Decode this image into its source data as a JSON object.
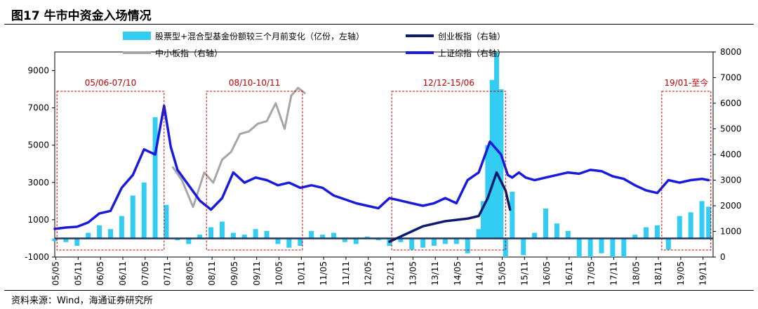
{
  "title": "图17 牛市中资金入场情况",
  "source": "资料来源：Wind，海通证券研究所",
  "chart_data": {
    "type": "bar",
    "x_ticks": [
      "05/05",
      "05/11",
      "06/05",
      "06/11",
      "07/05",
      "07/11",
      "08/05",
      "08/11",
      "09/05",
      "09/11",
      "10/05",
      "10/11",
      "11/05",
      "11/11",
      "12/05",
      "12/11",
      "13/05",
      "13/11",
      "14/05",
      "14/11",
      "15/05",
      "15/11",
      "16/05",
      "16/11",
      "17/05",
      "17/11",
      "18/05",
      "18/11",
      "19/05",
      "19/11"
    ],
    "left_axis": {
      "ticks": [
        "-1000",
        "1000",
        "3000",
        "5000",
        "7000",
        "9000"
      ],
      "range": [
        -1000,
        10000
      ]
    },
    "right_axis": {
      "ticks": [
        "0",
        "1000",
        "2000",
        "3000",
        "4000",
        "5000",
        "6000",
        "7000",
        "8000"
      ],
      "range": [
        0,
        8000
      ]
    },
    "series": [
      {
        "name": "股票型+混合型基金份额较三个月前变化（亿份，左轴）",
        "type": "bar",
        "axis": "left",
        "color": "#33ccf2",
        "x": [
          2005.35,
          2005.6,
          2005.85,
          2006.1,
          2006.35,
          2006.6,
          2006.85,
          2007.1,
          2007.35,
          2007.6,
          2007.85,
          2008.1,
          2008.35,
          2008.6,
          2008.85,
          2009.1,
          2009.35,
          2009.6,
          2009.85,
          2010.1,
          2010.35,
          2010.6,
          2010.85,
          2011.1,
          2011.35,
          2011.6,
          2011.85,
          2012.1,
          2012.35,
          2012.6,
          2012.85,
          2013.1,
          2013.35,
          2013.6,
          2013.85,
          2014.1,
          2014.35,
          2014.6,
          2014.85,
          2014.95,
          2015.05,
          2015.15,
          2015.25,
          2015.35,
          2015.45,
          2015.6,
          2015.85,
          2016.1,
          2016.35,
          2016.6,
          2016.85,
          2017.1,
          2017.35,
          2017.6,
          2017.85,
          2018.1,
          2018.35,
          2018.6,
          2018.85,
          2019.1,
          2019.35,
          2019.6,
          2019.85,
          2020.0
        ],
        "values": [
          -150,
          -200,
          -400,
          300,
          700,
          500,
          1200,
          2300,
          3000,
          6500,
          1800,
          -100,
          -300,
          200,
          600,
          900,
          300,
          200,
          500,
          400,
          -300,
          -500,
          -400,
          400,
          200,
          300,
          -200,
          -300,
          100,
          -100,
          -400,
          -200,
          -600,
          -500,
          -400,
          -300,
          -300,
          -800,
          500,
          2000,
          5000,
          8500,
          10000,
          8000,
          -1000,
          2500,
          -900,
          300,
          1600,
          800,
          400,
          -1000,
          -1000,
          -800,
          -1000,
          -1000,
          200,
          600,
          700,
          -600,
          1200,
          1400,
          2000,
          1700
        ]
      },
      {
        "name": "上证综指（右轴）",
        "type": "line",
        "axis": "right",
        "color": "#1a1adc",
        "x": [
          2005.35,
          2005.6,
          2005.85,
          2006.1,
          2006.35,
          2006.6,
          2006.85,
          2007.1,
          2007.35,
          2007.6,
          2007.8,
          2007.95,
          2008.1,
          2008.35,
          2008.6,
          2008.85,
          2009.1,
          2009.35,
          2009.6,
          2009.85,
          2010.1,
          2010.35,
          2010.6,
          2010.85,
          2011.1,
          2011.35,
          2011.6,
          2011.85,
          2012.1,
          2012.35,
          2012.6,
          2012.85,
          2013.1,
          2013.35,
          2013.6,
          2013.85,
          2014.1,
          2014.35,
          2014.6,
          2014.85,
          2015.1,
          2015.35,
          2015.5,
          2015.6,
          2015.75,
          2015.9,
          2016.1,
          2016.35,
          2016.6,
          2016.85,
          2017.1,
          2017.35,
          2017.6,
          2017.85,
          2018.1,
          2018.35,
          2018.6,
          2018.85,
          2019.1,
          2019.35,
          2019.6,
          2019.85,
          2020.0
        ],
        "values": [
          1100,
          1150,
          1180,
          1350,
          1700,
          1800,
          2700,
          3200,
          4200,
          4000,
          5900,
          4300,
          3400,
          2800,
          2200,
          1850,
          2300,
          3300,
          2900,
          3100,
          3000,
          2800,
          2900,
          2700,
          2800,
          2700,
          2400,
          2250,
          2100,
          2000,
          1900,
          2300,
          2200,
          2100,
          2000,
          2100,
          2300,
          2100,
          3000,
          3300,
          4500,
          4000,
          3200,
          3100,
          3300,
          3100,
          3000,
          3100,
          3200,
          3300,
          3250,
          3400,
          3350,
          3150,
          3050,
          2800,
          2600,
          2500,
          3000,
          2900,
          3000,
          3050,
          3000
        ]
      },
      {
        "name": "中小板指（右轴）",
        "type": "line",
        "axis": "right",
        "color": "#a6a6a6",
        "x": [
          2008.0,
          2008.2,
          2008.45,
          2008.7,
          2008.9,
          2009.1,
          2009.3,
          2009.5,
          2009.7,
          2009.9,
          2010.1,
          2010.3,
          2010.5,
          2010.65,
          2010.8,
          2010.95
        ],
        "values": [
          3500,
          3000,
          1950,
          3300,
          2900,
          3800,
          4100,
          4800,
          4900,
          5200,
          5300,
          6000,
          5000,
          6300,
          6600,
          6400
        ]
      },
      {
        "name": "创业板指（右轴）",
        "type": "line",
        "axis": "right",
        "color": "#0d1a6e",
        "x": [
          2012.85,
          2013.1,
          2013.35,
          2013.6,
          2013.85,
          2014.1,
          2014.35,
          2014.6,
          2014.85,
          2015.05,
          2015.25,
          2015.45,
          2015.55
        ],
        "values": [
          600,
          800,
          1000,
          1200,
          1300,
          1400,
          1450,
          1500,
          1600,
          2300,
          3300,
          2600,
          1850
        ]
      }
    ],
    "annotations": [
      {
        "label": "05/06-07/10",
        "from": 2005.4,
        "to": 2007.8
      },
      {
        "label": "08/10-10/11",
        "from": 2008.75,
        "to": 2010.9
      },
      {
        "label": "12/12-15/06",
        "from": 2012.9,
        "to": 2015.45
      },
      {
        "label": "19/01-至今",
        "from": 2018.95,
        "to": 2020.05
      }
    ]
  }
}
